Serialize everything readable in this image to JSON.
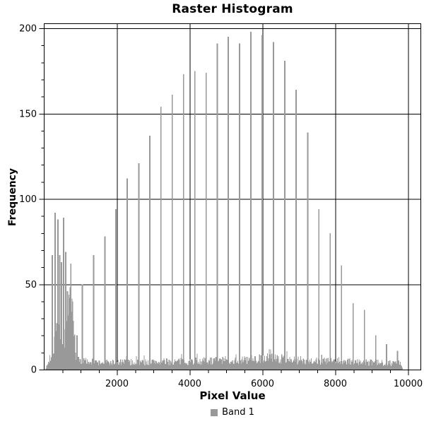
{
  "title": "Raster Histogram",
  "axes": {
    "xlabel": "Pixel Value",
    "ylabel": "Frequency",
    "x_major_ticks": [
      2000,
      4000,
      6000,
      8000,
      10000
    ],
    "x_minor_step": 500,
    "y_major_ticks": [
      0,
      50,
      100,
      150,
      200
    ],
    "y_minor_step": 10
  },
  "legend": {
    "items": [
      {
        "label": "Band 1",
        "color": "#999999"
      }
    ]
  },
  "colors": {
    "bar": "#999999",
    "axis": "#000000",
    "grid": "#000000",
    "text": "#000000",
    "background": "#ffffff"
  },
  "chart_data": {
    "type": "bar",
    "title": "Raster Histogram",
    "xlabel": "Pixel Value",
    "ylabel": "Frequency",
    "xlim": [
      0,
      10350
    ],
    "ylim": [
      0,
      202.5
    ],
    "grid": true,
    "legend_position": "bottom",
    "series": [
      {
        "name": "Band 1",
        "color": "#999999"
      }
    ],
    "spikes": [
      [
        225,
        67
      ],
      [
        300,
        92
      ],
      [
        380,
        88
      ],
      [
        425,
        67
      ],
      [
        475,
        63
      ],
      [
        535,
        89
      ],
      [
        590,
        69
      ],
      [
        640,
        46
      ],
      [
        705,
        42
      ],
      [
        780,
        40
      ],
      [
        900,
        20
      ],
      [
        1050,
        50
      ],
      [
        1360,
        67
      ],
      [
        1670,
        78
      ],
      [
        1970,
        94
      ],
      [
        2280,
        112
      ],
      [
        2600,
        121
      ],
      [
        2900,
        137
      ],
      [
        3210,
        154
      ],
      [
        3520,
        161
      ],
      [
        3830,
        173
      ],
      [
        4140,
        175
      ],
      [
        4450,
        174
      ],
      [
        4760,
        191
      ],
      [
        5060,
        195
      ],
      [
        5370,
        191
      ],
      [
        5680,
        198
      ],
      [
        5990,
        196
      ],
      [
        6300,
        192
      ],
      [
        6610,
        181
      ],
      [
        6920,
        164
      ],
      [
        7240,
        139
      ],
      [
        7550,
        94
      ],
      [
        7860,
        80
      ],
      [
        8170,
        61
      ],
      [
        8490,
        39
      ],
      [
        8800,
        35
      ],
      [
        9110,
        20
      ],
      [
        9410,
        15
      ],
      [
        9710,
        11
      ]
    ],
    "noise_envelope": [
      [
        30,
        0.5
      ],
      [
        80,
        2
      ],
      [
        150,
        6
      ],
      [
        220,
        12
      ],
      [
        300,
        20
      ],
      [
        360,
        24
      ],
      [
        420,
        20
      ],
      [
        480,
        18
      ],
      [
        540,
        20
      ],
      [
        600,
        22
      ],
      [
        650,
        26
      ],
      [
        700,
        30
      ],
      [
        760,
        34
      ],
      [
        800,
        28
      ],
      [
        840,
        16
      ],
      [
        880,
        9
      ],
      [
        940,
        6
      ],
      [
        1000,
        5
      ],
      [
        1500,
        4
      ],
      [
        2500,
        4.2
      ],
      [
        3500,
        4.5
      ],
      [
        4500,
        5
      ],
      [
        5500,
        5.5
      ],
      [
        6200,
        6.5
      ],
      [
        6500,
        6
      ],
      [
        7000,
        5.5
      ],
      [
        7600,
        5
      ],
      [
        8200,
        4.5
      ],
      [
        9000,
        4
      ],
      [
        9600,
        3.8
      ],
      [
        9800,
        3.5
      ],
      [
        9850,
        0
      ]
    ],
    "noise": {
      "start": 30,
      "end": 9850,
      "bin": 18,
      "seed": 7,
      "jitter": [
        0.55,
        0.95
      ]
    }
  }
}
